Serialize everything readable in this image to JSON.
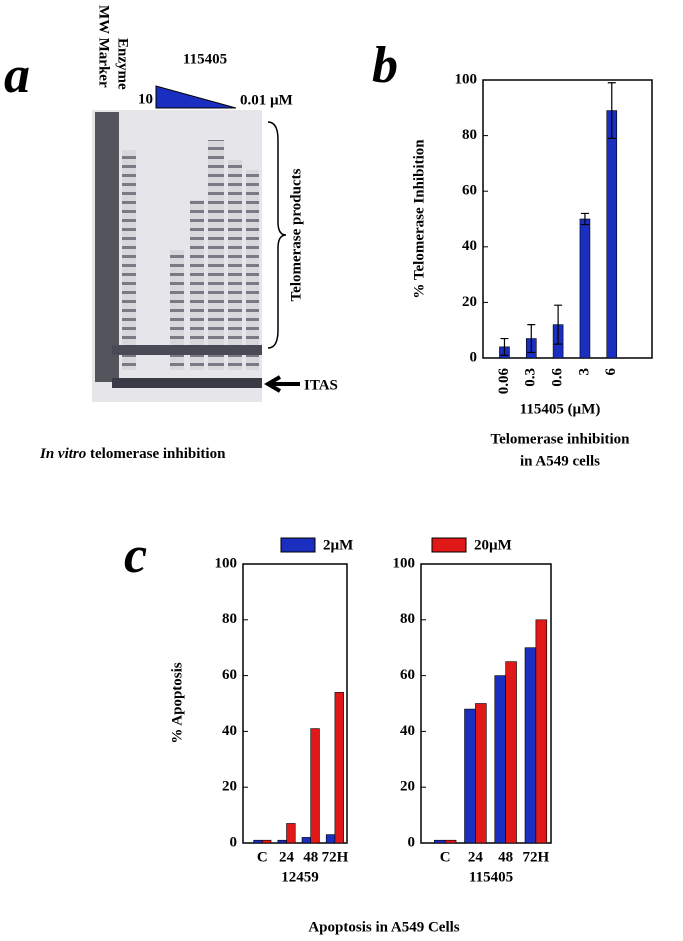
{
  "panel_a": {
    "label": "a",
    "lane_labels": [
      "MW Marker",
      "Enzyme"
    ],
    "compound": "115405",
    "high_dose": "10",
    "low_dose": "0.01 µM",
    "bracket_label": "Telomerase products",
    "itas_label": "ITAS",
    "caption_italic": "In vitro",
    "caption": "telomerase inhibition"
  },
  "panel_b": {
    "label": "b",
    "caption": [
      "Telomerase inhibition",
      "in A549 cells"
    ]
  },
  "panel_c": {
    "label": "c",
    "ylabel": "% Apoptosis",
    "caption": "Apoptosis in A549 Cells",
    "legend": [
      {
        "name": "2µM",
        "color": "#1a2fc0"
      },
      {
        "name": "20µM",
        "color": "#e01818"
      }
    ]
  },
  "chart_data": [
    {
      "type": "bar",
      "ylabel": "% Telomerase Inhibition",
      "xlabel": "115405 (µM)",
      "categories": [
        "0.06",
        "0.3",
        "0.6",
        "3",
        "6"
      ],
      "values": [
        4,
        7,
        12,
        50,
        89
      ],
      "errors": [
        3,
        5,
        7,
        2,
        10
      ],
      "color": "#1a2fc0",
      "ylim": [
        0,
        100
      ],
      "yticks": [
        0,
        20,
        40,
        60,
        80,
        100
      ]
    },
    {
      "type": "grouped-bar",
      "xlabel": "12459",
      "categories": [
        "C",
        "24",
        "48",
        "72H"
      ],
      "series": [
        {
          "color": "#1a2fc0",
          "values": [
            1,
            1,
            2,
            3
          ]
        },
        {
          "color": "#e01818",
          "values": [
            1,
            7,
            41,
            54
          ]
        }
      ],
      "ylim": [
        0,
        100
      ],
      "yticks": [
        0,
        20,
        40,
        60,
        80,
        100
      ]
    },
    {
      "type": "grouped-bar",
      "xlabel": "115405",
      "categories": [
        "C",
        "24",
        "48",
        "72H"
      ],
      "series": [
        {
          "color": "#1a2fc0",
          "values": [
            1,
            48,
            60,
            70
          ]
        },
        {
          "color": "#e01818",
          "values": [
            1,
            50,
            65,
            80
          ]
        }
      ],
      "ylim": [
        0,
        100
      ],
      "yticks": [
        0,
        20,
        40,
        60,
        80,
        100
      ]
    }
  ]
}
